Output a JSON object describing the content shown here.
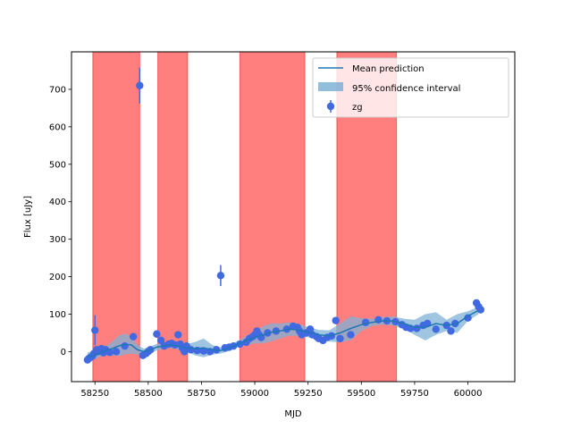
{
  "chart_data": {
    "type": "scatter",
    "xlabel": "MJD",
    "ylabel": "Flux [uJy]",
    "xlim": [
      58140,
      60220
    ],
    "ylim": [
      -80,
      800
    ],
    "xticks": [
      58250,
      58500,
      58750,
      59000,
      59250,
      59500,
      59750,
      60000
    ],
    "yticks": [
      0,
      100,
      200,
      300,
      400,
      500,
      600,
      700
    ],
    "legend": {
      "placement": "top-right",
      "entries": [
        "Mean prediction",
        "95% confidence interval",
        "zg"
      ]
    },
    "shaded_regions": [
      {
        "x0": 58240,
        "x1": 58460
      },
      {
        "x0": 58545,
        "x1": 58685
      },
      {
        "x0": 58930,
        "x1": 59235
      },
      {
        "x0": 59385,
        "x1": 59665
      }
    ],
    "colors": {
      "mean": "#1f77b4",
      "ci": "#7fb2d5",
      "points": "#4169e1",
      "regions": "#ff0000"
    },
    "series": [
      {
        "name": "Mean prediction",
        "x": [
          58215,
          58270,
          58300,
          58330,
          58360,
          58390,
          58420,
          58450,
          58480,
          58510,
          58540,
          58570,
          58600,
          58640,
          58680,
          58720,
          58760,
          58800,
          58840,
          58880,
          58920,
          58960,
          59000,
          59040,
          59080,
          59120,
          59160,
          59200,
          59250,
          59300,
          59350,
          59400,
          59450,
          59500,
          59550,
          59600,
          59650,
          59700,
          59750,
          59800,
          59850,
          59900,
          59950,
          60000,
          60050
        ],
        "y": [
          -15,
          -5,
          3,
          8,
          15,
          20,
          18,
          5,
          0,
          5,
          12,
          15,
          18,
          15,
          10,
          8,
          10,
          5,
          3,
          10,
          20,
          30,
          38,
          45,
          52,
          55,
          60,
          58,
          52,
          45,
          42,
          50,
          62,
          72,
          78,
          82,
          82,
          75,
          65,
          65,
          75,
          70,
          75,
          95,
          110
        ]
      },
      {
        "name": "95% confidence interval",
        "x": [
          58215,
          58270,
          58300,
          58330,
          58360,
          58390,
          58420,
          58450,
          58480,
          58510,
          58540,
          58570,
          58600,
          58640,
          58680,
          58720,
          58760,
          58800,
          58840,
          58880,
          58920,
          58960,
          59000,
          59040,
          59080,
          59120,
          59160,
          59200,
          59250,
          59300,
          59350,
          59400,
          59450,
          59500,
          59550,
          59600,
          59650,
          59700,
          59750,
          59800,
          59850,
          59900,
          59950,
          60000,
          60050
        ],
        "lower": [
          -28,
          -15,
          -8,
          -10,
          -12,
          -8,
          -5,
          -8,
          -8,
          -4,
          3,
          7,
          10,
          6,
          0,
          -10,
          -15,
          -8,
          -5,
          2,
          12,
          18,
          22,
          22,
          28,
          35,
          42,
          42,
          38,
          32,
          27,
          25,
          30,
          55,
          68,
          72,
          70,
          62,
          45,
          30,
          45,
          55,
          50,
          82,
          100
        ],
        "upper": [
          -2,
          5,
          14,
          26,
          42,
          48,
          41,
          18,
          8,
          14,
          21,
          23,
          26,
          24,
          20,
          26,
          35,
          18,
          11,
          18,
          28,
          42,
          54,
          68,
          76,
          75,
          78,
          74,
          66,
          58,
          57,
          75,
          94,
          89,
          88,
          92,
          94,
          88,
          85,
          100,
          105,
          85,
          100,
          108,
          120
        ]
      },
      {
        "name": "zg",
        "x": [
          58215,
          58222,
          58230,
          58238,
          58245,
          58250,
          58258,
          58265,
          58272,
          58280,
          58290,
          58300,
          58320,
          58350,
          58390,
          58430,
          58460,
          58475,
          58490,
          58500,
          58510,
          58540,
          58560,
          58575,
          58595,
          58610,
          58625,
          58640,
          58650,
          58660,
          58670,
          58680,
          58700,
          58730,
          58760,
          58790,
          58820,
          58840,
          58860,
          58880,
          58900,
          58930,
          58960,
          58975,
          58990,
          59000,
          59010,
          59020,
          59030,
          59060,
          59100,
          59150,
          59180,
          59200,
          59210,
          59220,
          59240,
          59260,
          59270,
          59290,
          59300,
          59320,
          59340,
          59360,
          59380,
          59400,
          59450,
          59520,
          59580,
          59620,
          59660,
          59690,
          59710,
          59730,
          59760,
          59790,
          59810,
          59850,
          59900,
          59920,
          59940,
          60000,
          60040,
          60050,
          60060
        ],
        "y": [
          -22,
          -18,
          -15,
          -12,
          -5,
          57,
          5,
          0,
          2,
          8,
          -3,
          5,
          -2,
          0,
          15,
          40,
          710,
          -10,
          -5,
          0,
          5,
          47,
          30,
          15,
          20,
          22,
          18,
          45,
          20,
          10,
          0,
          15,
          5,
          3,
          2,
          0,
          5,
          203,
          10,
          12,
          15,
          20,
          25,
          35,
          40,
          45,
          55,
          45,
          38,
          50,
          55,
          60,
          68,
          65,
          55,
          45,
          50,
          60,
          45,
          40,
          35,
          30,
          38,
          42,
          83,
          35,
          45,
          78,
          85,
          82,
          80,
          72,
          65,
          62,
          62,
          70,
          75,
          60,
          70,
          55,
          75,
          90,
          130,
          120,
          112
        ],
        "err": [
          8,
          8,
          8,
          8,
          8,
          40,
          8,
          8,
          8,
          8,
          8,
          8,
          8,
          8,
          8,
          8,
          48,
          8,
          8,
          8,
          8,
          10,
          8,
          8,
          8,
          8,
          8,
          8,
          8,
          8,
          8,
          8,
          8,
          8,
          8,
          8,
          8,
          28,
          8,
          8,
          8,
          8,
          8,
          8,
          8,
          8,
          8,
          8,
          8,
          8,
          8,
          8,
          8,
          8,
          8,
          8,
          8,
          8,
          8,
          8,
          8,
          8,
          8,
          8,
          8,
          8,
          8,
          8,
          8,
          8,
          8,
          8,
          8,
          8,
          8,
          8,
          8,
          8,
          8,
          8,
          8,
          8,
          8,
          8,
          8
        ]
      }
    ]
  }
}
